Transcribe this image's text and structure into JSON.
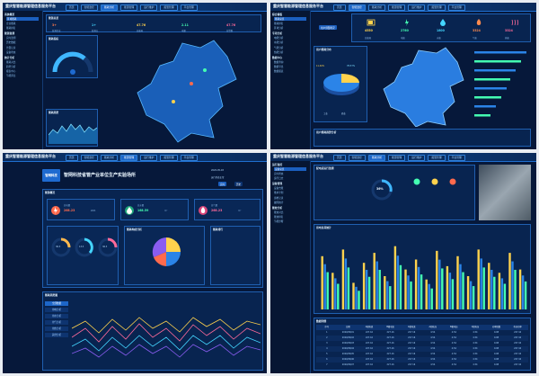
{
  "brand": "重庆智慧能源管理信息服务平台",
  "nav": [
    "首页",
    "智能监控",
    "能耗分析",
    "能源管理",
    "运行维护",
    "报警管理",
    "平台管理"
  ],
  "panels": {
    "p1": {
      "side": [
        {
          "group": "系统概览",
          "items": [
            "区域能耗",
            "企业能耗",
            "能耗排名"
          ]
        },
        {
          "group": "能源监测",
          "items": [
            "实时监测",
            "历史数据",
            "告警记录",
            "设备状态"
          ]
        },
        {
          "group": "统计分析",
          "items": [
            "能耗对比",
            "趋势分析",
            "报表中心",
            "节能评估"
          ]
        }
      ],
      "summary_title": "能源总览",
      "kpis": [
        {
          "label": "监测企业",
          "value": "3+",
          "color": "#ff7a4d"
        },
        {
          "label": "监测点",
          "value": "1+",
          "color": "#44d6ff"
        },
        {
          "label": "总能耗",
          "value": "47.76",
          "color": "#ffd24d"
        },
        {
          "label": "电量",
          "value": "2.11",
          "color": "#44ffb2"
        },
        {
          "label": "告警数",
          "value": "47.76",
          "color": "#ff6a9a"
        }
      ],
      "gauge_title": "能耗指标",
      "trend_title": "能耗趋势"
    },
    "p2": {
      "side": [
        {
          "group": "综合看板",
          "items": [
            "能耗总览",
            "能耗排名",
            "区域分析"
          ]
        },
        {
          "group": "专项分析",
          "items": [
            "电能分析",
            "水能分析",
            "气能分析",
            "热能分析"
          ]
        },
        {
          "group": "数据中心",
          "items": [
            "数据查询",
            "数据导出",
            "数据报表"
          ]
        }
      ],
      "alert_btn": "用户预警概况",
      "pie_title": "用户能耗分布",
      "pie_pct_a": "11.46%",
      "pie_pct_b": "78.57%",
      "legend": [
        "工业",
        "商业"
      ],
      "bottom_title": "用户能耗趋势分析",
      "icon_cards": [
        {
          "label": "总能耗",
          "value": "4550",
          "color": "#ffd24d"
        },
        {
          "label": "电能",
          "value": "2760",
          "color": "#44ffb2"
        },
        {
          "label": "水能",
          "value": "1800",
          "color": "#44d6ff"
        },
        {
          "label": "气能",
          "value": "3324",
          "color": "#ff8a4d"
        },
        {
          "label": "热能",
          "value": "3324",
          "color": "#ff6a9a"
        }
      ]
    },
    "p3": {
      "brand_box": "智网科技",
      "title": "智网科技省管产业单位生产实验场所",
      "date_label": "2020-05-18",
      "status_label": "运行状态正常",
      "btns": [
        "实时",
        "历史"
      ],
      "section_title": "能源概况",
      "readings": [
        {
          "name": "总电量",
          "value": "268.23",
          "unit": "kWh",
          "color": "#ff6a4d"
        },
        {
          "name": "总水量",
          "value": "168.59",
          "unit": "m³",
          "color": "#44ffb2"
        },
        {
          "name": "总气量",
          "value": "268.23",
          "unit": "m³",
          "color": "#ff6a9a"
        }
      ],
      "pie_title": "能耗构成分析",
      "gauge_vals": [
        "36.3",
        "13.3",
        "36.3"
      ],
      "mini_table_title": "能耗排行",
      "vtabs": [
        "全部数据",
        "用电分析",
        "用水分析",
        "用气分析",
        "用热分析",
        "其他分析"
      ],
      "line_title": "能耗趋势图"
    },
    "p4": {
      "side": [
        {
          "group": "运行监控",
          "items": [
            "设备总览",
            "实时状态",
            "运行日志"
          ]
        },
        {
          "group": "设备管理",
          "items": [
            "设备台账",
            "维护计划",
            "巡检记录",
            "故障统计"
          ]
        },
        {
          "group": "能效分析",
          "items": [
            "能效对比",
            "能效排名",
            "节能诊断"
          ]
        }
      ],
      "top_title": "配电房运行监测",
      "pct": "36%",
      "bar_title": "用电负荷统计",
      "table_title": "数据明细",
      "table_headers": [
        "序号",
        "日期",
        "A相电流",
        "B相电流",
        "C相电流",
        "A相电压",
        "B相电压",
        "C相电压",
        "功率因数",
        "有功功率"
      ],
      "table_rows": [
        [
          "1",
          "2020/06/01",
          "227.16",
          "227.16",
          "227.16",
          "4.54",
          "4.54",
          "4.54",
          "0.98",
          "227.16"
        ],
        [
          "2",
          "2020/06/02",
          "227.16",
          "227.16",
          "227.16",
          "4.54",
          "4.54",
          "4.54",
          "0.98",
          "227.16"
        ],
        [
          "3",
          "2020/06/03",
          "227.16",
          "227.16",
          "227.16",
          "4.54",
          "4.54",
          "4.54",
          "0.98",
          "227.16"
        ],
        [
          "4",
          "2020/06/04",
          "227.16",
          "227.16",
          "227.16",
          "4.54",
          "4.54",
          "4.54",
          "0.98",
          "227.16"
        ],
        [
          "5",
          "2020/06/05",
          "227.16",
          "227.16",
          "227.16",
          "4.54",
          "4.54",
          "4.54",
          "0.98",
          "227.16"
        ],
        [
          "6",
          "2020/06/06",
          "227.16",
          "227.16",
          "227.16",
          "4.54",
          "4.54",
          "4.54",
          "0.98",
          "227.16"
        ],
        [
          "7",
          "2020/06/07",
          "227.16",
          "227.16",
          "227.16",
          "4.54",
          "4.54",
          "4.54",
          "0.98",
          "227.16"
        ]
      ],
      "bar_values": [
        0.8,
        0.55,
        0.9,
        0.4,
        0.7,
        0.85,
        0.5,
        0.95,
        0.6,
        0.75,
        0.45,
        0.88,
        0.65,
        0.8,
        0.5,
        0.9,
        0.7,
        0.55,
        0.85,
        0.6
      ]
    }
  }
}
